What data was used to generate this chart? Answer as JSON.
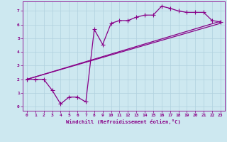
{
  "xlabel": "Windchill (Refroidissement éolien,°C)",
  "bg_color": "#cde8f0",
  "grid_color": "#b0d0de",
  "line_color": "#880088",
  "xlim": [
    -0.5,
    23.5
  ],
  "ylim": [
    -0.3,
    7.7
  ],
  "xticks": [
    0,
    1,
    2,
    3,
    4,
    5,
    6,
    7,
    8,
    9,
    10,
    11,
    12,
    13,
    14,
    15,
    16,
    17,
    18,
    19,
    20,
    21,
    22,
    23
  ],
  "yticks": [
    0,
    1,
    2,
    3,
    4,
    5,
    6,
    7
  ],
  "series1_x": [
    0,
    1,
    2,
    3,
    4,
    5,
    6,
    7,
    8,
    9,
    10,
    11,
    12,
    13,
    14,
    15,
    16,
    17,
    18,
    19,
    20,
    21,
    22,
    23
  ],
  "series1_y": [
    2.0,
    2.0,
    2.0,
    1.2,
    0.2,
    0.7,
    0.7,
    0.35,
    5.65,
    4.55,
    6.1,
    6.3,
    6.3,
    6.55,
    6.7,
    6.7,
    7.35,
    7.2,
    7.0,
    6.9,
    6.9,
    6.9,
    6.3,
    6.2
  ],
  "series2_x": [
    0,
    23
  ],
  "series2_y": [
    2.0,
    6.25
  ],
  "series3_x": [
    0,
    23
  ],
  "series3_y": [
    2.0,
    6.1
  ],
  "marker": "+",
  "markersize": 4,
  "linewidth": 0.9
}
